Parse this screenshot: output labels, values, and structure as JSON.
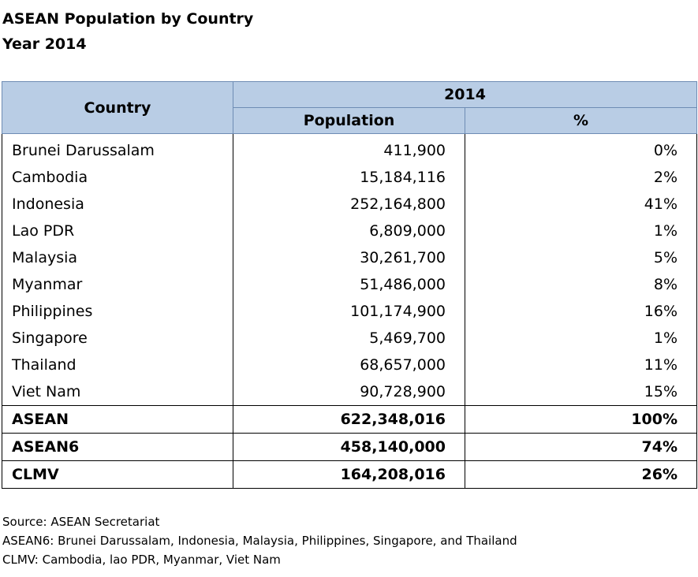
{
  "title_line1": "ASEAN Population by Country",
  "title_line2": "Year 2014",
  "table": {
    "header_country": "Country",
    "header_year": "2014",
    "header_population": "Population",
    "header_percent": "%",
    "rows": [
      {
        "country": "Brunei Darussalam",
        "population": "411,900",
        "percent": "0%"
      },
      {
        "country": "Cambodia",
        "population": "15,184,116",
        "percent": "2%"
      },
      {
        "country": "Indonesia",
        "population": "252,164,800",
        "percent": "41%"
      },
      {
        "country": "Lao PDR",
        "population": "6,809,000",
        "percent": "1%"
      },
      {
        "country": "Malaysia",
        "population": "30,261,700",
        "percent": "5%"
      },
      {
        "country": "Myanmar",
        "population": "51,486,000",
        "percent": "8%"
      },
      {
        "country": "Philippines",
        "population": "101,174,900",
        "percent": "16%"
      },
      {
        "country": "Singapore",
        "population": "5,469,700",
        "percent": "1%"
      },
      {
        "country": "Thailand",
        "population": "68,657,000",
        "percent": "11%"
      },
      {
        "country": "Viet Nam",
        "population": "90,728,900",
        "percent": "15%"
      }
    ],
    "aggregates": [
      {
        "country": "ASEAN",
        "population": "622,348,016",
        "percent": "100%"
      },
      {
        "country": "ASEAN6",
        "population": "458,140,000",
        "percent": "74%"
      },
      {
        "country": "CLMV",
        "population": "164,208,016",
        "percent": "26%"
      }
    ]
  },
  "notes": {
    "source": "Source: ASEAN Secretariat",
    "asean6": "ASEAN6: Brunei Darussalam, Indonesia, Malaysia, Philippines, Singapore, and Thailand",
    "clmv": "CLMV: Cambodia, lao PDR, Myanmar, Viet Nam"
  }
}
